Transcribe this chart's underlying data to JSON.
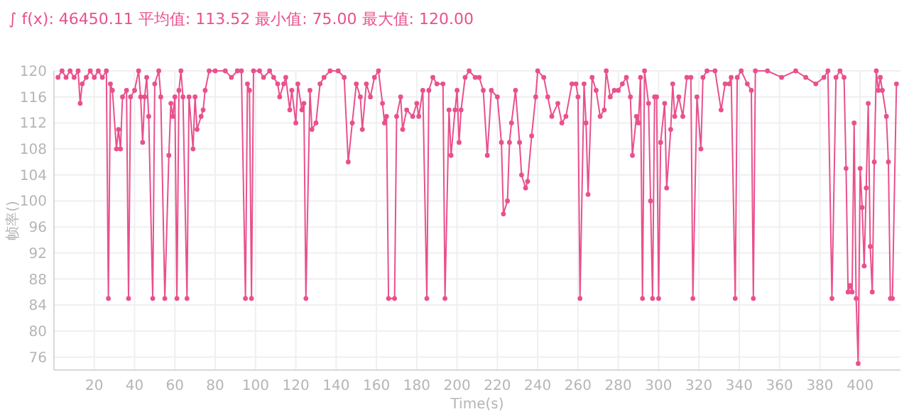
{
  "chart_data": {
    "type": "line",
    "title": "∫ f(x): 46450.11 平均值: 113.52 最小值: 75.00 最大值: 120.00",
    "xlabel": "Time(s)",
    "ylabel": "帧率()",
    "xlim": [
      0,
      420
    ],
    "ylim": [
      74,
      120
    ],
    "xticks": [
      20,
      40,
      60,
      80,
      100,
      120,
      140,
      160,
      180,
      200,
      220,
      240,
      260,
      280,
      300,
      320,
      340,
      360,
      380,
      400
    ],
    "yticks": [
      76,
      80,
      84,
      88,
      92,
      96,
      100,
      104,
      108,
      112,
      116,
      120
    ],
    "grid": true,
    "marker": "circle",
    "line_style": "solid",
    "series": [
      {
        "color": "#e9508c",
        "x": [
          2,
          4,
          6,
          8,
          10,
          12,
          13,
          14,
          16,
          18,
          20,
          22,
          24,
          26,
          27,
          28,
          29,
          31,
          32,
          33,
          34,
          36,
          37,
          38,
          40,
          42,
          43,
          44,
          45,
          46,
          47,
          49,
          50,
          52,
          53,
          55,
          57,
          58,
          59,
          60,
          61,
          62,
          63,
          64,
          66,
          67,
          69,
          70,
          71,
          73,
          74,
          75,
          77,
          80,
          85,
          88,
          91,
          93,
          95,
          96,
          97,
          98,
          99,
          102,
          104,
          107,
          109,
          111,
          112,
          114,
          115,
          117,
          118,
          120,
          121,
          123,
          124,
          125,
          127,
          128,
          130,
          132,
          134,
          137,
          141,
          144,
          146,
          148,
          150,
          152,
          153,
          155,
          157,
          159,
          161,
          163,
          164,
          165,
          166,
          169,
          170,
          172,
          173,
          175,
          178,
          180,
          181,
          183,
          185,
          186,
          188,
          190,
          193,
          194,
          196,
          197,
          199,
          200,
          201,
          202,
          204,
          206,
          209,
          211,
          213,
          215,
          217,
          220,
          222,
          223,
          225,
          226,
          227,
          229,
          231,
          232,
          234,
          235,
          237,
          239,
          240,
          243,
          245,
          247,
          250,
          252,
          254,
          257,
          259,
          260,
          261,
          263,
          264,
          265,
          267,
          269,
          271,
          273,
          274,
          276,
          278,
          280,
          282,
          284,
          286,
          287,
          289,
          290,
          291,
          292,
          293,
          295,
          296,
          297,
          298,
          299,
          300,
          301,
          303,
          304,
          306,
          307,
          308,
          310,
          312,
          314,
          316,
          317,
          319,
          321,
          322,
          324,
          328,
          331,
          333,
          335,
          336,
          338,
          339,
          341,
          344,
          346,
          347,
          348,
          354,
          361,
          368,
          373,
          378,
          382,
          384,
          386,
          388,
          390,
          392,
          393,
          394,
          395,
          396,
          397,
          398,
          399,
          400,
          401,
          402,
          403,
          404,
          405,
          406,
          407,
          408,
          409,
          410,
          411,
          413,
          414,
          415,
          416,
          418
        ],
        "values": [
          119,
          120,
          119,
          120,
          119,
          120,
          115,
          118,
          119,
          120,
          119,
          120,
          119,
          120,
          85,
          118,
          117,
          108,
          111,
          108,
          116,
          117,
          85,
          116,
          117,
          120,
          116,
          109,
          116,
          119,
          113,
          85,
          118,
          120,
          116,
          85,
          107,
          115,
          113,
          116,
          85,
          117,
          120,
          116,
          85,
          116,
          108,
          116,
          111,
          113,
          114,
          117,
          120,
          120,
          120,
          119,
          120,
          120,
          85,
          118,
          117,
          85,
          120,
          120,
          119,
          120,
          119,
          118,
          116,
          118,
          119,
          114,
          117,
          112,
          118,
          114,
          115,
          85,
          117,
          111,
          112,
          118,
          119,
          120,
          120,
          119,
          106,
          112,
          118,
          116,
          111,
          118,
          116,
          119,
          120,
          115,
          112,
          113,
          85,
          85,
          113,
          116,
          111,
          114,
          113,
          115,
          113,
          117,
          85,
          117,
          119,
          118,
          118,
          85,
          114,
          107,
          114,
          117,
          109,
          114,
          119,
          120,
          119,
          119,
          117,
          107,
          117,
          116,
          109,
          98,
          100,
          109,
          112,
          117,
          109,
          104,
          102,
          103,
          110,
          116,
          120,
          119,
          116,
          113,
          115,
          112,
          113,
          118,
          118,
          116,
          85,
          118,
          112,
          101,
          119,
          117,
          113,
          114,
          120,
          116,
          117,
          117,
          118,
          119,
          116,
          107,
          113,
          112,
          119,
          85,
          120,
          115,
          100,
          85,
          116,
          116,
          85,
          109,
          115,
          102,
          111,
          118,
          113,
          116,
          113,
          119,
          119,
          85,
          116,
          108,
          119,
          120,
          120,
          114,
          118,
          118,
          119,
          85,
          119,
          120,
          118,
          117,
          85,
          120,
          120,
          119,
          120,
          119,
          118,
          119,
          120,
          85,
          119,
          120,
          119,
          105,
          86,
          87,
          86,
          112,
          85,
          75,
          105,
          99,
          90,
          102,
          115,
          93,
          86,
          106,
          120,
          117,
          119,
          117,
          113,
          106,
          85,
          85,
          118
        ]
      }
    ]
  }
}
